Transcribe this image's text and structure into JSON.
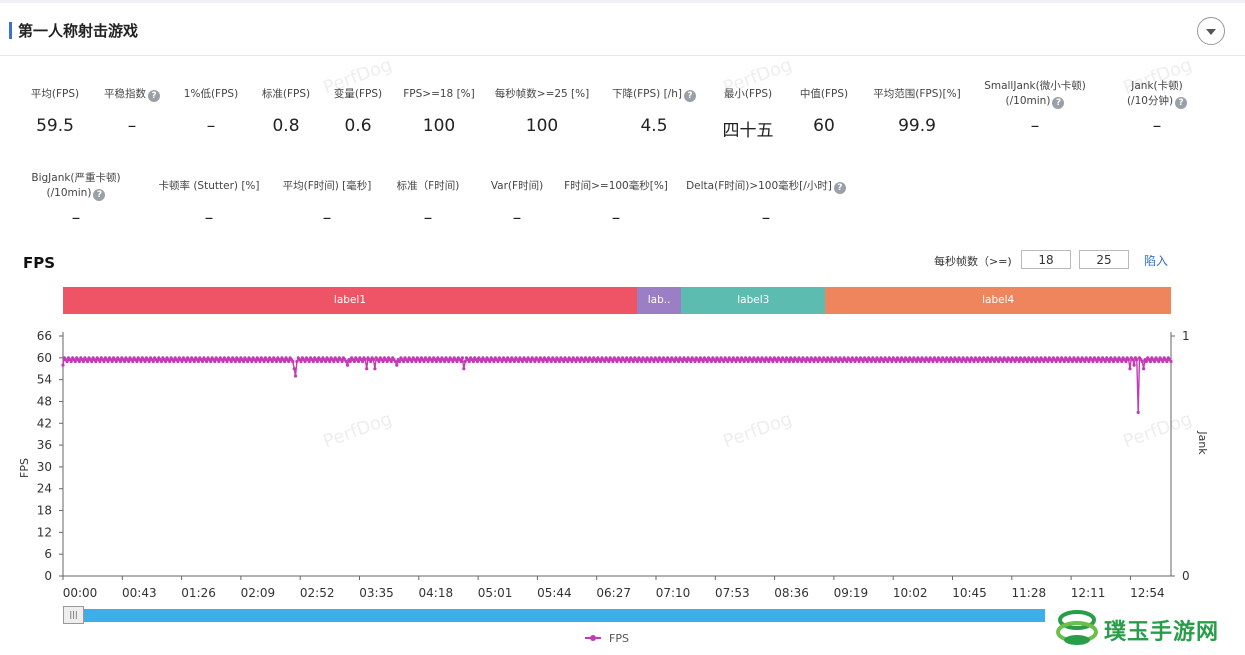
{
  "header": {
    "title": "第一人称射击游戏"
  },
  "metrics_row1": [
    {
      "label": "平均(FPS)",
      "value": "59.5",
      "help": false
    },
    {
      "label": "平稳指数",
      "value": "–",
      "help": true
    },
    {
      "label": "1%低(FPS)",
      "value": "–",
      "help": false
    },
    {
      "label": "标准(FPS)",
      "value": "0.8",
      "help": false
    },
    {
      "label": "变量(FPS)",
      "value": "0.6",
      "help": false
    },
    {
      "label": "FPS>=18 [%]",
      "value": "100",
      "help": false
    },
    {
      "label": "每秒帧数>=25 [%]",
      "value": "100",
      "help": false
    },
    {
      "label": "下降(FPS) [/h]",
      "value": "4.5",
      "help": true
    },
    {
      "label": "最小(FPS)",
      "value": "四十五",
      "help": false
    },
    {
      "label": "中值(FPS)",
      "value": "60",
      "help": false
    },
    {
      "label": "平均范围(FPS)[%]",
      "value": "99.9",
      "help": false
    },
    {
      "label": "SmallJank(微小卡顿)",
      "label2": "(/10min)",
      "value": "–",
      "help": true
    },
    {
      "label": "Jank(卡顿)",
      "label2": "(/10分钟)",
      "value": "–",
      "help": true
    }
  ],
  "metrics_row2": [
    {
      "label": "BigJank(严重卡顿)",
      "label2": "(/10min)",
      "value": "–",
      "help": true
    },
    {
      "label": "卡顿率 (Stutter) [%]",
      "value": "–",
      "help": false
    },
    {
      "label": "平均(F时间) [毫秒]",
      "value": "–",
      "help": false
    },
    {
      "label": "标准（F时间)",
      "value": "–",
      "help": false
    },
    {
      "label": "Var(F时间)",
      "value": "–",
      "help": false
    },
    {
      "label": "F时间>=100毫秒[%]",
      "value": "–",
      "help": false
    },
    {
      "label": "Delta(F时间)>100毫秒[/小时]",
      "value": "–",
      "help": true
    }
  ],
  "fps_section": {
    "title": "FPS",
    "threshold_label": "每秒帧数（>=)",
    "threshold1": "18",
    "threshold2": "25",
    "import_label": "陷入"
  },
  "label_segments": [
    {
      "name": "label1",
      "start": 0,
      "end": 0.518,
      "color": "#ef5466"
    },
    {
      "name": "lab..",
      "start": 0.518,
      "end": 0.558,
      "color": "#9b7fc4"
    },
    {
      "name": "label3",
      "start": 0.558,
      "end": 0.688,
      "color": "#5dbcb0"
    },
    {
      "name": "label4",
      "start": 0.688,
      "end": 1.0,
      "color": "#ef855c"
    }
  ],
  "chart_data": {
    "type": "line",
    "ylabel": "FPS",
    "y2label": "Jank",
    "ylim": [
      0,
      66
    ],
    "yticks": [
      0,
      6,
      12,
      18,
      24,
      30,
      36,
      42,
      48,
      54,
      60,
      66
    ],
    "y2ticks": [
      "0",
      "1"
    ],
    "xticks": [
      "00:00",
      "00:43",
      "01:26",
      "02:09",
      "02:52",
      "03:35",
      "04:18",
      "05:01",
      "05:44",
      "06:27",
      "07:10",
      "07:53",
      "08:36",
      "09:19",
      "10:02",
      "10:45",
      "11:28",
      "12:11",
      "12:54"
    ],
    "xlim_seconds": [
      0,
      810
    ],
    "series": [
      {
        "name": "FPS",
        "color": "#c23bb4",
        "baseline": 59.5,
        "dips": [
          {
            "t": 0,
            "v": 58
          },
          {
            "t": 169,
            "v": 57
          },
          {
            "t": 170,
            "v": 55
          },
          {
            "t": 208,
            "v": 58
          },
          {
            "t": 222,
            "v": 57
          },
          {
            "t": 228,
            "v": 57
          },
          {
            "t": 244,
            "v": 58
          },
          {
            "t": 293,
            "v": 57
          },
          {
            "t": 780,
            "v": 57
          },
          {
            "t": 783,
            "v": 58
          },
          {
            "t": 786,
            "v": 45
          },
          {
            "t": 790,
            "v": 57
          }
        ]
      }
    ],
    "legend": "bottom-center"
  },
  "watermark": "PerfDog",
  "brand": {
    "name": "璞玉手游网"
  }
}
